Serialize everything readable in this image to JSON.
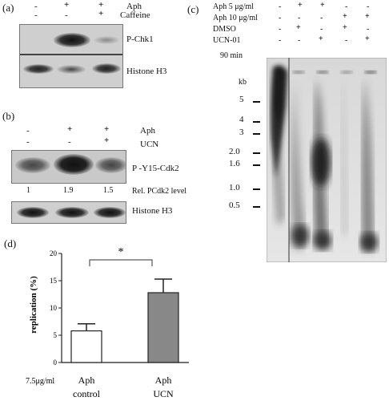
{
  "panel_a": {
    "label": "(a)",
    "rows": [
      {
        "name": "Aph",
        "marks": [
          "-",
          "+",
          "+"
        ]
      },
      {
        "name": "Caffeine",
        "marks": [
          "-",
          "-",
          "+"
        ]
      }
    ],
    "bands": [
      "P-Chk1",
      "Histone H3"
    ]
  },
  "panel_b": {
    "label": "(b)",
    "rows": [
      {
        "name": "Aph",
        "marks": [
          "-",
          "+",
          "+"
        ]
      },
      {
        "name": "UCN",
        "marks": [
          "-",
          "-",
          "+"
        ]
      }
    ],
    "bands": [
      "P -Y15-Cdk2",
      "Histone H3"
    ],
    "rel_values": [
      "1",
      "1.9",
      "1.5"
    ],
    "rel_label": "Rel. PCdk2  level"
  },
  "panel_c": {
    "label": "(c)",
    "rows": [
      {
        "name": "Aph 5 μg/ml",
        "marks": [
          "-",
          "+",
          "+",
          "-",
          "-"
        ]
      },
      {
        "name": "Aph 10 μg/ml",
        "marks": [
          "-",
          "-",
          "-",
          "+",
          "+"
        ]
      },
      {
        "name": "DMSO",
        "marks": [
          "-",
          "+",
          "-",
          "+",
          "-"
        ]
      },
      {
        "name": "UCN-01",
        "marks": [
          "-",
          "-",
          "+",
          "-",
          "+"
        ]
      }
    ],
    "time": "90 min",
    "kb_label": "kb",
    "ladder": [
      "5",
      "4",
      "3",
      "2.0",
      "1.6",
      "1.0",
      "0.5"
    ]
  },
  "panel_d": {
    "label": "(d)",
    "significance": "*",
    "dose_label": "7.5μg/ml"
  },
  "chart_data": {
    "type": "bar",
    "categories": [
      "Aph control",
      "Aph UCN"
    ],
    "category_lines": [
      [
        "Aph",
        "control"
      ],
      [
        "Aph",
        "UCN"
      ]
    ],
    "values": [
      5.8,
      12.8
    ],
    "errors": [
      1.3,
      2.5
    ],
    "colors": [
      "#ffffff",
      "#888888"
    ],
    "ylabel": "replication (%)",
    "ylim": [
      0,
      20
    ],
    "yticks": [
      "0",
      "5",
      "10",
      "15",
      "20"
    ]
  }
}
